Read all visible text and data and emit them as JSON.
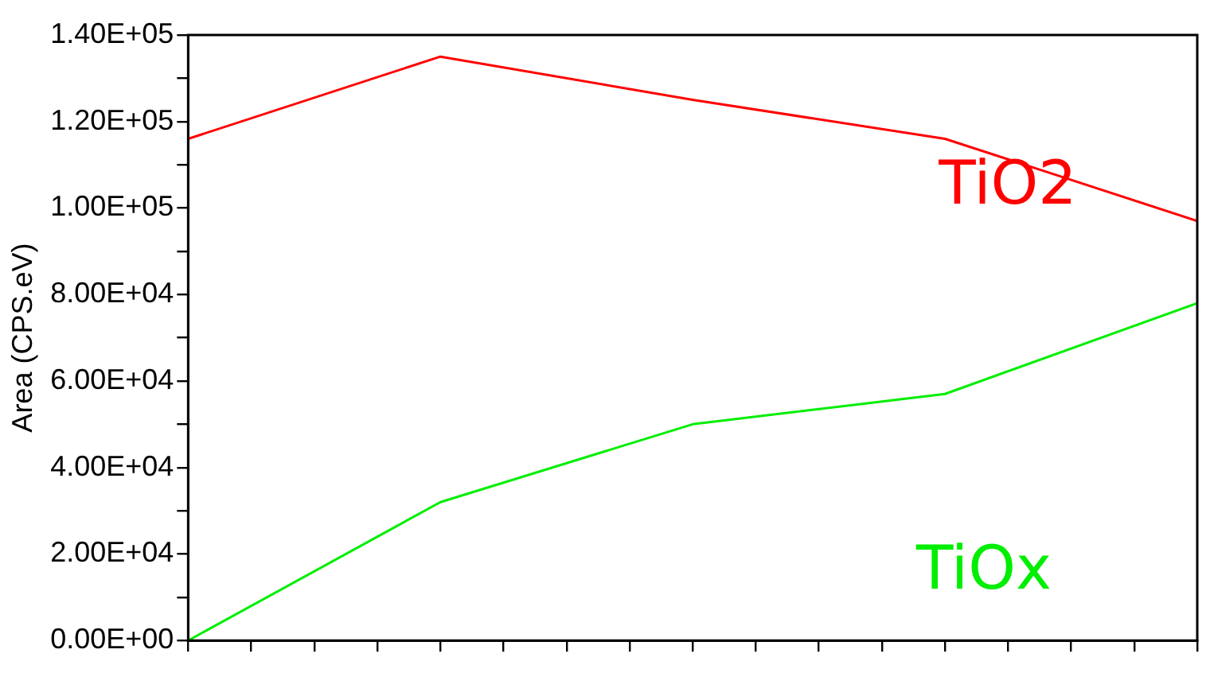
{
  "chart_data": {
    "type": "line",
    "ylabel": "Area (CPS.eV)",
    "categories": [
      null,
      null,
      null,
      null,
      null
    ],
    "series": [
      {
        "name": "TiO2",
        "color": "#ff0000",
        "values": [
          116000,
          135000,
          125000,
          116000,
          97000
        ]
      },
      {
        "name": "TiOx",
        "color": "#00ee00",
        "values": [
          0,
          32000,
          50000,
          57000,
          78000
        ]
      }
    ],
    "ylim": [
      0,
      140000
    ],
    "yticks": [
      {
        "value": 0,
        "label": "0.00E+00"
      },
      {
        "value": 10000,
        "label": null
      },
      {
        "value": 20000,
        "label": "2.00E+04"
      },
      {
        "value": 30000,
        "label": null
      },
      {
        "value": 40000,
        "label": "4.00E+04"
      },
      {
        "value": 50000,
        "label": null
      },
      {
        "value": 60000,
        "label": "6.00E+04"
      },
      {
        "value": 70000,
        "label": null
      },
      {
        "value": 80000,
        "label": "8.00E+04"
      },
      {
        "value": 90000,
        "label": null
      },
      {
        "value": 100000,
        "label": "1.00E+05"
      },
      {
        "value": 110000,
        "label": null
      },
      {
        "value": 120000,
        "label": "1.20E+05"
      },
      {
        "value": 130000,
        "label": null
      },
      {
        "value": 140000,
        "label": "1.40E+05"
      }
    ],
    "tick_labels": "y",
    "grid": false,
    "legend": false,
    "marker": "none",
    "line_style": "solid"
  }
}
